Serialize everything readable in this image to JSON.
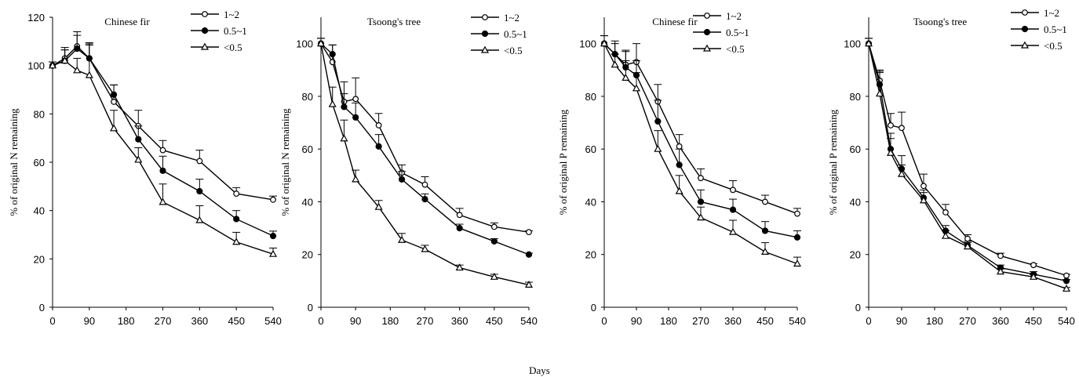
{
  "shared_xlabel": "Days",
  "chart_data": [
    {
      "type": "line",
      "title": "Chinese  fir",
      "ylabel": "% of original N remaining",
      "xlabel": "",
      "xlim": [
        0,
        540
      ],
      "ylim": [
        0,
        120
      ],
      "xticks": [
        0,
        90,
        180,
        270,
        360,
        450,
        540
      ],
      "yticks": [
        0,
        20,
        40,
        60,
        80,
        100,
        120
      ],
      "grid": false,
      "legend": "top-right",
      "x": [
        0,
        30,
        60,
        90,
        150,
        210,
        270,
        360,
        450,
        540
      ],
      "series": [
        {
          "name": "1~2",
          "marker": "open-circle",
          "values": [
            100,
            103,
            108,
            103,
            85,
            75,
            65,
            60.5,
            47,
            44.5
          ],
          "errors": [
            1.5,
            4.5,
            6,
            5.5,
            7,
            6.5,
            4,
            4.5,
            2.5,
            1.5
          ]
        },
        {
          "name": "0.5~1",
          "marker": "filled-circle",
          "values": [
            100,
            102,
            107,
            103,
            88,
            69.5,
            56.5,
            48,
            36.5,
            29.5
          ],
          "errors": [
            1.5,
            4.5,
            5.5,
            6,
            4,
            5.5,
            6,
            5,
            3.5,
            2
          ]
        },
        {
          "name": "<0.5",
          "marker": "open-triangle",
          "values": [
            100,
            102,
            98,
            96,
            74,
            61,
            43.5,
            36,
            27,
            22
          ],
          "errors": [
            1.5,
            4.5,
            5,
            13.5,
            7.5,
            5,
            7.5,
            6,
            4,
            2.5
          ]
        }
      ]
    },
    {
      "type": "line",
      "title": "Tsoong's  tree",
      "ylabel": "% of original N remaining",
      "xlabel": "",
      "xlim": [
        0,
        540
      ],
      "ylim": [
        0,
        110
      ],
      "xticks": [
        0,
        90,
        180,
        270,
        360,
        450,
        540
      ],
      "yticks": [
        0,
        20,
        40,
        60,
        80,
        100
      ],
      "grid": false,
      "legend": "top-right",
      "x": [
        0,
        30,
        60,
        90,
        150,
        210,
        270,
        360,
        450,
        540
      ],
      "series": [
        {
          "name": "1~2",
          "marker": "open-circle",
          "values": [
            100,
            93,
            78,
            79,
            69,
            51,
            46.5,
            35,
            30.5,
            28.5
          ],
          "errors": [
            2,
            6.5,
            7.5,
            8,
            4.5,
            3,
            3,
            2.5,
            1.5,
            0.5
          ]
        },
        {
          "name": "0.5~1",
          "marker": "filled-circle",
          "values": [
            100,
            96,
            76,
            72,
            61,
            48.5,
            41,
            30,
            25,
            20
          ],
          "errors": [
            2,
            3.5,
            5,
            5.5,
            4.5,
            3,
            2,
            1.5,
            1,
            0.5
          ]
        },
        {
          "name": "<0.5",
          "marker": "open-triangle",
          "values": [
            100,
            77,
            64,
            48.5,
            38,
            25.5,
            22,
            15,
            11.5,
            8.5
          ],
          "errors": [
            2,
            6.5,
            7,
            3.5,
            2.5,
            2.5,
            1.5,
            1,
            1,
            1
          ]
        }
      ]
    },
    {
      "type": "line",
      "title": "Chinese  fir",
      "ylabel": "% of original P remaining",
      "xlabel": "",
      "xlim": [
        0,
        540
      ],
      "ylim": [
        0,
        110
      ],
      "xticks": [
        0,
        90,
        180,
        270,
        360,
        450,
        540
      ],
      "yticks": [
        0,
        20,
        40,
        60,
        80,
        100
      ],
      "grid": false,
      "legend": "top-right",
      "x": [
        0,
        30,
        60,
        90,
        150,
        210,
        270,
        360,
        450,
        540
      ],
      "series": [
        {
          "name": "1~2",
          "marker": "open-circle",
          "values": [
            100,
            96,
            92,
            93,
            78,
            61,
            49,
            44.5,
            40,
            35.5
          ],
          "errors": [
            3,
            5,
            5.5,
            7,
            6.5,
            4.5,
            3.5,
            3.5,
            2.5,
            2
          ]
        },
        {
          "name": "0.5~1",
          "marker": "filled-circle",
          "values": [
            100,
            96,
            91,
            88,
            70.5,
            54,
            40,
            37,
            29,
            26.5
          ],
          "errors": [
            3,
            4,
            6,
            5.5,
            8,
            6,
            4.5,
            4,
            3.5,
            2.5
          ]
        },
        {
          "name": "<0.5",
          "marker": "open-triangle",
          "values": [
            100,
            92,
            87,
            83,
            60,
            44,
            34,
            28.5,
            21,
            16.5
          ],
          "errors": [
            3,
            4,
            6.5,
            6,
            7,
            6,
            4,
            4.5,
            3.5,
            2.5
          ]
        }
      ]
    },
    {
      "type": "line",
      "title": "Tsoong's  tree",
      "ylabel": "% of original P remaining",
      "xlabel": "",
      "xlim": [
        0,
        540
      ],
      "ylim": [
        0,
        110
      ],
      "xticks": [
        0,
        90,
        180,
        270,
        360,
        450,
        540
      ],
      "yticks": [
        0,
        20,
        40,
        60,
        80,
        100
      ],
      "grid": false,
      "legend": "top-right",
      "x": [
        0,
        30,
        60,
        90,
        150,
        210,
        270,
        360,
        450,
        540
      ],
      "series": [
        {
          "name": "1~2",
          "marker": "open-circle",
          "values": [
            100,
            86,
            69,
            68,
            46,
            36,
            26,
            19.5,
            16,
            12
          ],
          "errors": [
            2,
            4,
            4.5,
            6,
            4.5,
            3,
            1.5,
            1,
            0.5,
            0.5
          ]
        },
        {
          "name": "0.5~1",
          "marker": "filled-circle",
          "values": [
            100,
            84.5,
            60,
            52.5,
            41.5,
            29,
            23.5,
            15,
            12.5,
            10
          ],
          "errors": [
            2,
            5,
            6,
            5,
            3,
            2,
            1.5,
            1,
            1,
            0.5
          ]
        },
        {
          "name": "<0.5",
          "marker": "open-triangle",
          "values": [
            100,
            81,
            58.5,
            50.5,
            40.5,
            27,
            23,
            13.5,
            11.5,
            7
          ],
          "errors": [
            2,
            8,
            5.5,
            3.5,
            3,
            2,
            1.5,
            1,
            1,
            0.5
          ]
        }
      ]
    }
  ]
}
